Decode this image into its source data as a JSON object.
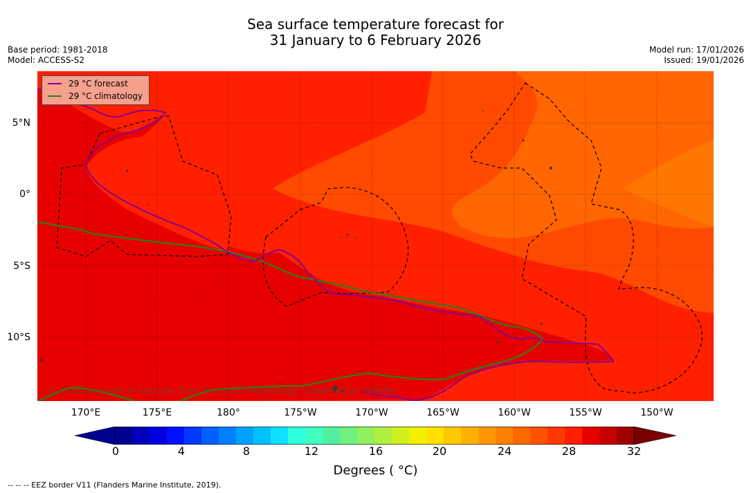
{
  "title": {
    "line1": "Sea surface temperature forecast for",
    "line2": "31 January to 6 February 2026"
  },
  "meta_left": {
    "base_period": "Base period: 1981-2018",
    "model": "Model: ACCESS-S2"
  },
  "meta_right": {
    "model_run": "Model run: 17/01/2026",
    "issued": "Issued: 19/01/2026"
  },
  "legend": {
    "forecast_label": "29 °C  forecast",
    "climatology_label": "29 °C  climatology",
    "forecast_color": "#8b008b",
    "climatology_color": "#2e7d1a"
  },
  "axes": {
    "lat_labels": [
      "5°N",
      "0°",
      "5°S",
      "10°S"
    ],
    "lon_labels": [
      "170°E",
      "175°E",
      "180°",
      "175°W",
      "170°W",
      "165°W",
      "160°W",
      "155°W",
      "150°W"
    ]
  },
  "colorbar": {
    "tick_labels": [
      "0",
      "4",
      "8",
      "12",
      "16",
      "20",
      "24",
      "28",
      "32"
    ],
    "title": "Degrees ( °C)",
    "colors": [
      "#00008f",
      "#0000b8",
      "#0000e0",
      "#0010ff",
      "#0038ff",
      "#0060ff",
      "#0080ff",
      "#00a0ff",
      "#00c0ff",
      "#10e0ff",
      "#30ffe0",
      "#40ffc0",
      "#50f0a0",
      "#70f080",
      "#90f060",
      "#b0f040",
      "#d0f020",
      "#f0f000",
      "#ffe000",
      "#ffc800",
      "#ffb000",
      "#ff9800",
      "#ff8000",
      "#ff6800",
      "#ff5000",
      "#ff3800",
      "#ff2000",
      "#e80000",
      "#c80000",
      "#a00000"
    ]
  },
  "copyright": "© Commonwealth of Australia 2026, Bureau of Meteorology, supported by COSPPac",
  "footnote": "--  --  -- EEZ border V11 (Flanders Marine Institute, 2019)."
}
